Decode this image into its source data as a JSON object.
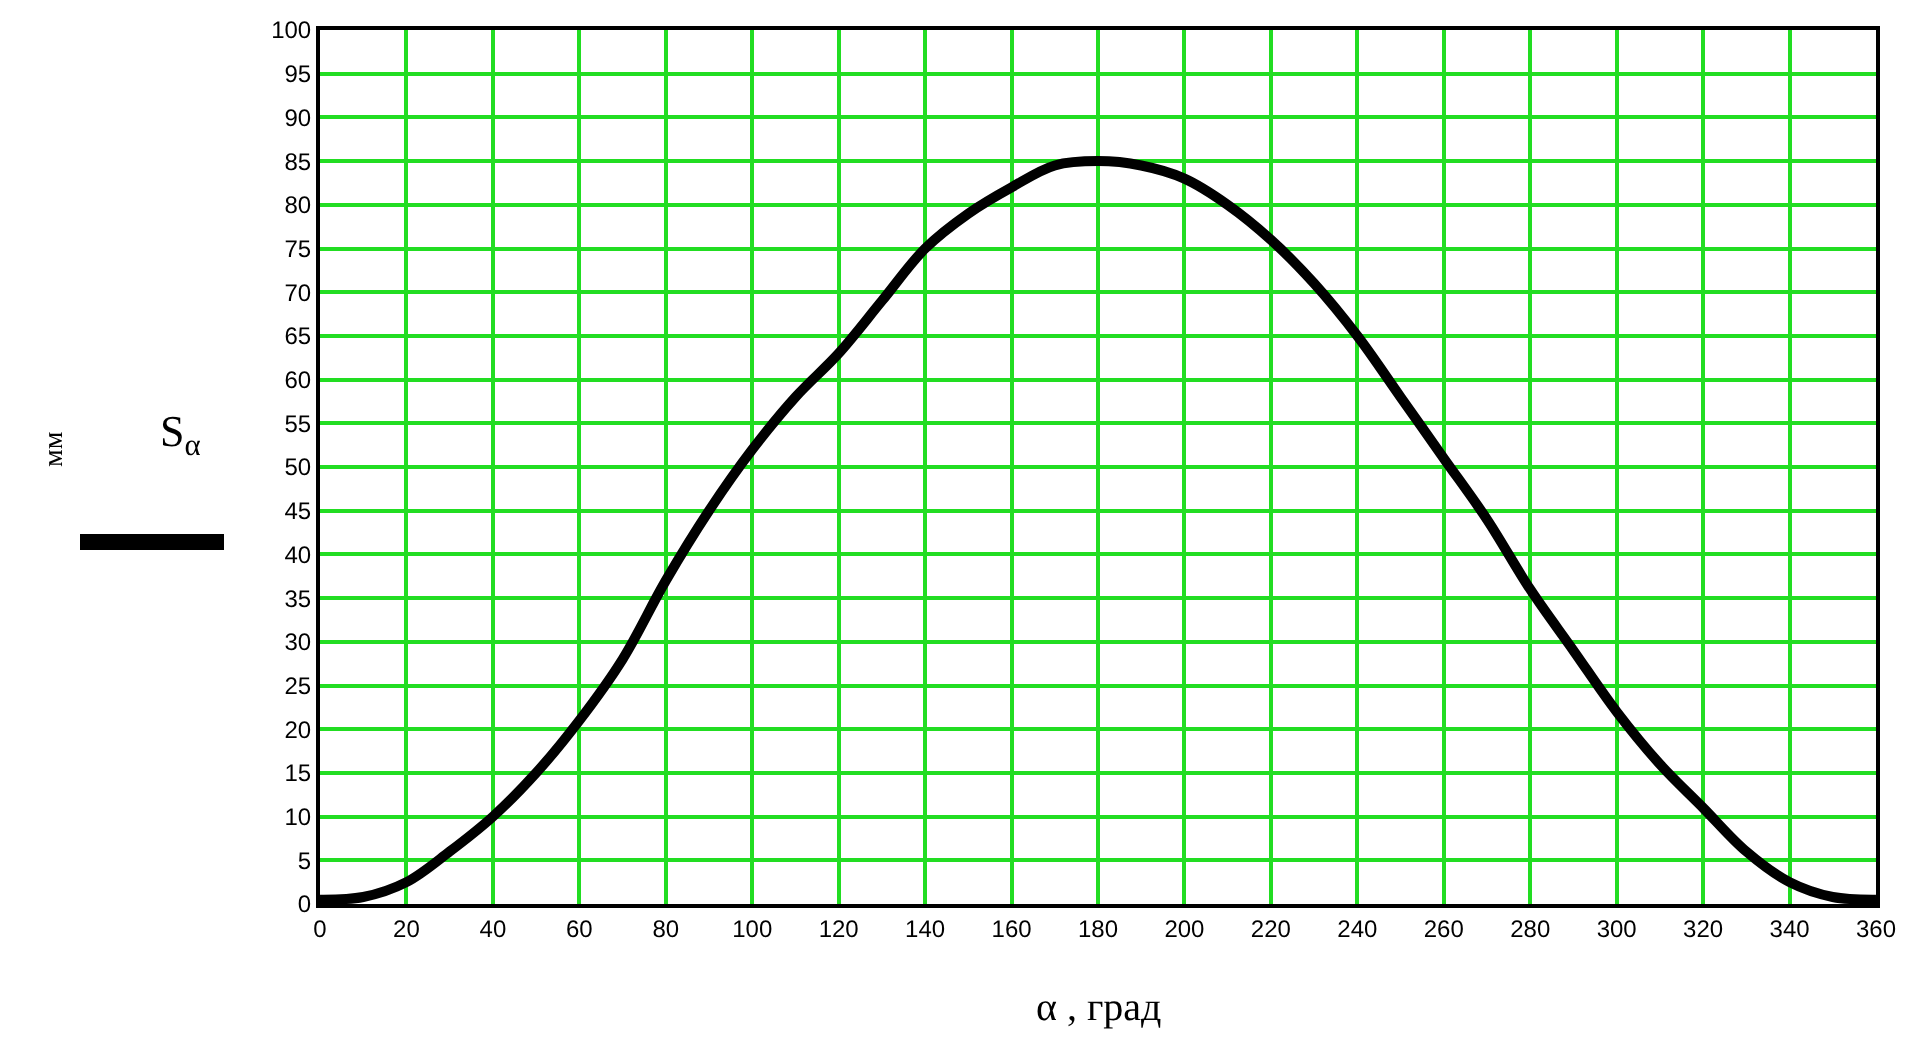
{
  "chart_data": {
    "type": "line",
    "xlabel": "α , град",
    "ylabel": "S$_{α}$",
    "annotations": [
      "мм"
    ],
    "x": [
      0,
      10,
      20,
      30,
      40,
      50,
      60,
      70,
      80,
      90,
      100,
      110,
      120,
      130,
      140,
      150,
      160,
      170,
      180,
      190,
      200,
      210,
      220,
      230,
      240,
      250,
      260,
      270,
      280,
      290,
      300,
      310,
      320,
      330,
      340,
      350,
      360
    ],
    "series": [
      {
        "color": "#000000",
        "values": [
          0.5,
          0.8,
          2.5,
          6,
          10,
          15,
          21,
          28,
          37,
          45,
          52,
          58,
          63,
          69,
          75,
          79,
          82,
          84.5,
          85,
          84.5,
          83,
          80,
          76,
          71,
          65,
          58,
          51,
          44,
          36,
          29,
          22,
          16,
          11,
          6,
          2.5,
          0.8,
          0.5
        ]
      }
    ],
    "xlim": [
      0,
      360
    ],
    "xticks": [
      0,
      20,
      40,
      60,
      80,
      100,
      120,
      140,
      160,
      180,
      200,
      220,
      240,
      260,
      280,
      300,
      320,
      340,
      360
    ],
    "ylim": [
      0,
      100
    ],
    "yticks": [
      0,
      5,
      10,
      15,
      20,
      25,
      30,
      35,
      40,
      45,
      50,
      55,
      60,
      65,
      70,
      75,
      80,
      85,
      90,
      95,
      100
    ],
    "grid": true,
    "marker": "none",
    "line_style": "solid"
  }
}
